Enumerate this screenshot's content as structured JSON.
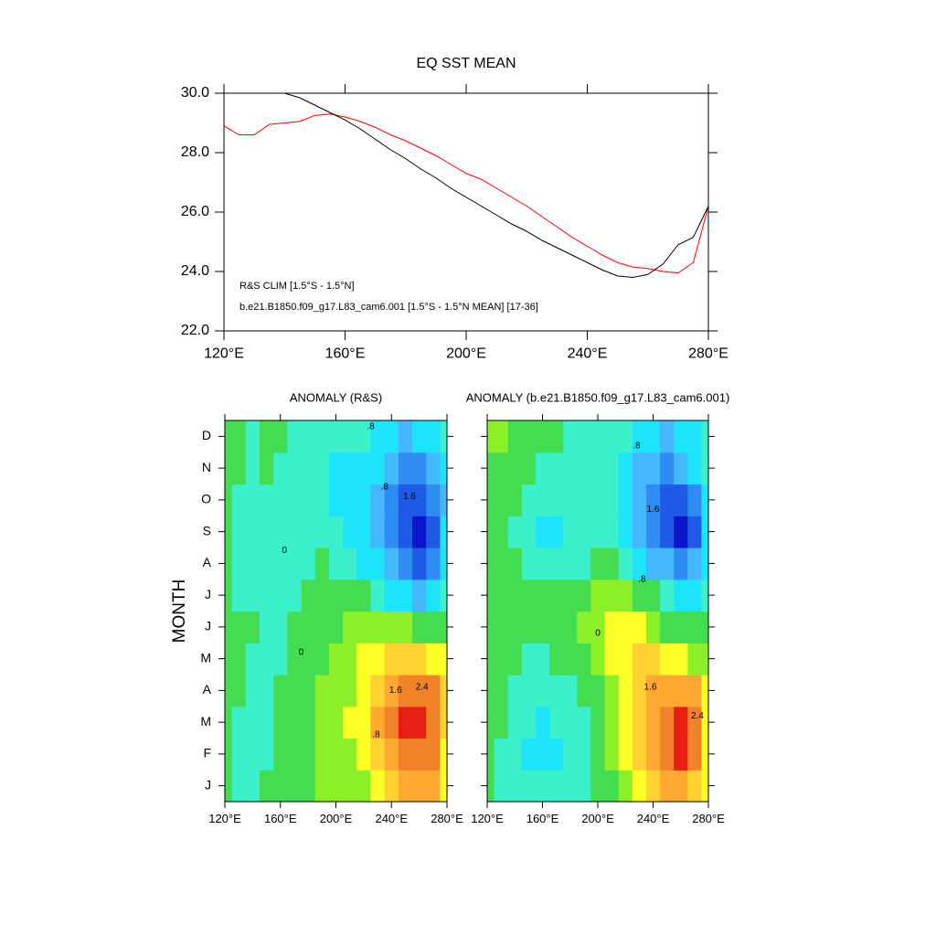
{
  "chart_data": [
    {
      "type": "line",
      "title": "EQ SST MEAN",
      "x": [
        120,
        125,
        130,
        135,
        140,
        145,
        150,
        155,
        160,
        165,
        170,
        175,
        180,
        185,
        190,
        195,
        200,
        205,
        210,
        215,
        220,
        225,
        230,
        235,
        240,
        245,
        250,
        255,
        260,
        265,
        270,
        275,
        280
      ],
      "series": [
        {
          "name": "R&S CLIM [1.5°S - 1.5°N]",
          "color": "#ff0000",
          "values": [
            28.9,
            28.6,
            28.6,
            28.95,
            29.0,
            29.05,
            29.25,
            29.3,
            29.2,
            29.05,
            28.85,
            28.6,
            28.4,
            28.15,
            27.9,
            27.6,
            27.3,
            27.1,
            26.8,
            26.5,
            26.2,
            25.85,
            25.5,
            25.15,
            24.85,
            24.55,
            24.3,
            24.15,
            24.1,
            24.0,
            23.95,
            24.3,
            26.2
          ]
        },
        {
          "name": "b.e21.B1850.f09_g17.L83_cam6.001 [1.5°S - 1.5°N MEAN] [17-36]",
          "color": "#000000",
          "values": [
            null,
            null,
            null,
            null,
            30.0,
            29.85,
            29.6,
            29.35,
            29.1,
            28.8,
            28.45,
            28.1,
            27.8,
            27.45,
            27.15,
            26.8,
            26.5,
            26.2,
            25.9,
            25.6,
            25.35,
            25.05,
            24.8,
            24.55,
            24.3,
            24.05,
            23.85,
            23.8,
            23.9,
            24.25,
            24.9,
            25.15,
            26.2
          ]
        }
      ],
      "xlim": [
        120,
        280
      ],
      "xticks": [
        {
          "value": 120,
          "label": "120°E"
        },
        {
          "value": 160,
          "label": "160°E"
        },
        {
          "value": 200,
          "label": "200°E"
        },
        {
          "value": 240,
          "label": "240°E"
        },
        {
          "value": 280,
          "label": "280°E"
        }
      ],
      "ylim": [
        22,
        30
      ],
      "yticks": [
        {
          "value": 22,
          "label": "22.0"
        },
        {
          "value": 24,
          "label": "24.0"
        },
        {
          "value": 26,
          "label": "26.0"
        },
        {
          "value": 28,
          "label": "28.0"
        },
        {
          "value": 30,
          "label": "30.0"
        }
      ]
    },
    {
      "type": "heatmap",
      "title": "ANOMALY (R&S)",
      "ylabel": "MONTH",
      "categories": [
        "J",
        "F",
        "M",
        "A",
        "M",
        "J",
        "J",
        "A",
        "S",
        "O",
        "N",
        "D"
      ],
      "x": [
        120,
        130,
        140,
        150,
        160,
        170,
        180,
        190,
        200,
        210,
        220,
        230,
        240,
        250,
        260,
        270,
        280
      ],
      "xlim": [
        120,
        280
      ],
      "xticks": [
        {
          "value": 120,
          "label": "120°E"
        },
        {
          "value": 160,
          "label": "160°E"
        },
        {
          "value": 200,
          "label": "200°E"
        },
        {
          "value": 240,
          "label": "240°E"
        },
        {
          "value": 280,
          "label": "280°E"
        }
      ],
      "ylim": [
        -0.5,
        11.5
      ],
      "yticks": [
        0,
        1,
        2,
        3,
        4,
        5,
        6,
        7,
        8,
        9,
        10,
        11
      ],
      "levels": [
        -2.0,
        -1.6,
        -1.2,
        -0.8,
        -0.4,
        0,
        0.4,
        0.8,
        1.2,
        1.6,
        2.0,
        2.4
      ],
      "colors": [
        "#0a14c8",
        "#1e5ae6",
        "#2e8cf2",
        "#44b8fa",
        "#1ee4fa",
        "#3cf0cc",
        "#44dc50",
        "#8cf028",
        "#ffff28",
        "#ffd232",
        "#ffa832",
        "#f08228",
        "#e61e14"
      ],
      "z": [
        [
          0.1,
          -0.2,
          -0.2,
          0,
          0.2,
          0.1,
          0.3,
          0.4,
          0.5,
          0.6,
          0.7,
          0.9,
          1.3,
          1.6,
          1.8,
          1.6,
          0.8
        ],
        [
          0.1,
          -0.1,
          -0.2,
          -0.1,
          0.1,
          0.2,
          0.3,
          0.4,
          0.5,
          0.7,
          0.9,
          1.3,
          1.8,
          2.2,
          2.3,
          2.0,
          1.0
        ],
        [
          0.2,
          -0.1,
          -0.2,
          -0.2,
          0,
          0.2,
          0.3,
          0.4,
          0.6,
          0.8,
          1.1,
          1.6,
          2.1,
          2.5,
          2.7,
          2.3,
          1.2
        ],
        [
          0.3,
          0,
          -0.1,
          -0.2,
          0,
          0.1,
          0.3,
          0.4,
          0.5,
          0.7,
          1.0,
          1.5,
          1.9,
          2.2,
          2.3,
          2.0,
          1.4
        ],
        [
          0.3,
          0.1,
          -0.1,
          -0.2,
          -0.1,
          0.1,
          0.2,
          0.3,
          0.4,
          0.6,
          0.8,
          1.1,
          1.3,
          1.4,
          1.3,
          1.0,
          0.9
        ],
        [
          0.2,
          0.1,
          0,
          -0.1,
          -0.1,
          0,
          0.1,
          0.2,
          0.3,
          0.4,
          0.5,
          0.6,
          0.6,
          0.4,
          0.2,
          0,
          0.2
        ],
        [
          0.1,
          -0.1,
          -0.2,
          -0.3,
          -0.2,
          -0.1,
          0,
          0.1,
          0.1,
          0.1,
          0,
          -0.2,
          -0.5,
          -0.8,
          -0.9,
          -0.8,
          -0.3
        ],
        [
          0,
          -0.2,
          -0.3,
          -0.3,
          -0.3,
          -0.2,
          -0.1,
          0,
          -0.1,
          -0.3,
          -0.5,
          -0.8,
          -1.2,
          -1.6,
          -1.8,
          -1.5,
          -0.6
        ],
        [
          0.1,
          -0.2,
          -0.3,
          -0.2,
          -0.2,
          -0.1,
          -0.1,
          -0.2,
          -0.3,
          -0.5,
          -0.7,
          -1.0,
          -1.5,
          -2.0,
          -2.2,
          -1.8,
          -0.8
        ],
        [
          0.2,
          -0.1,
          -0.2,
          -0.1,
          -0.1,
          -0.2,
          -0.3,
          -0.4,
          -0.5,
          -0.6,
          -0.8,
          -1.0,
          -1.4,
          -1.8,
          -1.9,
          -1.6,
          -0.9
        ],
        [
          0.2,
          0,
          -0.1,
          0,
          -0.1,
          -0.3,
          -0.4,
          -0.4,
          -0.5,
          -0.5,
          -0.6,
          -0.8,
          -1.1,
          -1.3,
          -1.3,
          -1.1,
          -0.6
        ],
        [
          0.2,
          0,
          -0.1,
          0,
          0,
          -0.2,
          -0.3,
          -0.3,
          -0.3,
          -0.3,
          -0.4,
          -0.6,
          -0.8,
          -0.9,
          -0.8,
          -0.6,
          -0.3
        ]
      ],
      "contour_labels": [
        {
          "label": ".8",
          "lon": 225,
          "month": 11.3
        },
        {
          "label": ".8",
          "lon": 235,
          "month": 9.4
        },
        {
          "label": "1.6",
          "lon": 253,
          "month": 9.1
        },
        {
          "label": "0",
          "lon": 163,
          "month": 7.4
        },
        {
          "label": "0",
          "lon": 175,
          "month": 4.2
        },
        {
          "label": "1.6",
          "lon": 243,
          "month": 3.0
        },
        {
          "label": "2.4",
          "lon": 262,
          "month": 3.1
        },
        {
          "label": ".8",
          "lon": 229,
          "month": 1.6
        }
      ]
    },
    {
      "type": "heatmap",
      "title": "ANOMALY (b.e21.B1850.f09_g17.L83_cam6.001)",
      "x": [
        120,
        130,
        140,
        150,
        160,
        170,
        180,
        190,
        200,
        210,
        220,
        230,
        240,
        250,
        260,
        270,
        280
      ],
      "xlim": [
        120,
        280
      ],
      "xticks": [
        {
          "value": 120,
          "label": "120°E"
        },
        {
          "value": 160,
          "label": "160°E"
        },
        {
          "value": 200,
          "label": "200°E"
        },
        {
          "value": 240,
          "label": "240°E"
        },
        {
          "value": 280,
          "label": "280°E"
        }
      ],
      "ylim": [
        -0.5,
        11.5
      ],
      "yticks": [
        0,
        1,
        2,
        3,
        4,
        5,
        6,
        7,
        8,
        9,
        10,
        11
      ],
      "levels": [
        -2.0,
        -1.6,
        -1.2,
        -0.8,
        -0.4,
        0,
        0.4,
        0.8,
        1.2,
        1.6,
        2.0,
        2.4
      ],
      "colors": [
        "#0a14c8",
        "#1e5ae6",
        "#2e8cf2",
        "#44b8fa",
        "#1ee4fa",
        "#3cf0cc",
        "#44dc50",
        "#8cf028",
        "#ffff28",
        "#ffd232",
        "#ffa832",
        "#f08228",
        "#e61e14"
      ],
      "z": [
        [
          0,
          -0.1,
          -0.2,
          -0.3,
          -0.4,
          -0.4,
          -0.3,
          -0.2,
          0,
          0.3,
          0.6,
          1.0,
          1.4,
          1.7,
          1.8,
          1.5,
          0.8
        ],
        [
          0.1,
          -0.1,
          -0.3,
          -0.5,
          -0.5,
          -0.5,
          -0.4,
          -0.2,
          0.1,
          0.4,
          0.8,
          1.3,
          1.8,
          2.2,
          2.4,
          2.0,
          1.0
        ],
        [
          0.1,
          0,
          -0.2,
          -0.4,
          -0.5,
          -0.4,
          -0.3,
          -0.1,
          0.2,
          0.5,
          0.9,
          1.4,
          1.9,
          2.3,
          2.5,
          2.2,
          1.1
        ],
        [
          0.2,
          0.1,
          -0.1,
          -0.2,
          -0.3,
          -0.2,
          -0.1,
          0.1,
          0.3,
          0.6,
          1.0,
          1.4,
          1.7,
          1.9,
          1.9,
          1.6,
          1.0
        ],
        [
          0.2,
          0.1,
          0,
          -0.1,
          -0.1,
          0,
          0.1,
          0.3,
          0.5,
          0.8,
          1.1,
          1.2,
          1.2,
          1.1,
          0.9,
          0.7,
          0.5
        ],
        [
          0.1,
          0.2,
          0.3,
          0.3,
          0.2,
          0.2,
          0.3,
          0.4,
          0.6,
          0.9,
          1.0,
          0.9,
          0.6,
          0.3,
          0.1,
          0,
          0.1
        ],
        [
          0,
          0.1,
          0.2,
          0.3,
          0.1,
          0,
          0.1,
          0.2,
          0.4,
          0.5,
          0.5,
          0.3,
          0,
          -0.3,
          -0.5,
          -0.5,
          -0.2
        ],
        [
          0,
          0,
          0,
          -0.1,
          -0.3,
          -0.3,
          -0.2,
          -0.1,
          0,
          0,
          -0.2,
          -0.5,
          -0.9,
          -1.2,
          -1.4,
          -1.2,
          -0.5
        ],
        [
          0.1,
          0,
          -0.1,
          -0.3,
          -0.5,
          -0.5,
          -0.4,
          -0.2,
          -0.2,
          -0.3,
          -0.6,
          -1.0,
          -1.5,
          -1.9,
          -2.1,
          -1.7,
          -0.7
        ],
        [
          0.2,
          0.1,
          0,
          -0.2,
          -0.4,
          -0.4,
          -0.3,
          -0.2,
          -0.2,
          -0.4,
          -0.7,
          -1.1,
          -1.6,
          -1.8,
          -1.7,
          -1.3,
          -0.6
        ],
        [
          0.3,
          0.3,
          0.2,
          0,
          -0.1,
          -0.2,
          -0.2,
          -0.2,
          -0.3,
          -0.4,
          -0.6,
          -0.9,
          -1.2,
          -1.3,
          -1.1,
          -0.8,
          -0.4
        ],
        [
          0.4,
          0.4,
          0.3,
          0.2,
          0.1,
          0,
          -0.1,
          -0.2,
          -0.2,
          -0.3,
          -0.4,
          -0.6,
          -0.8,
          -0.9,
          -0.7,
          -0.5,
          -0.2
        ]
      ],
      "contour_labels": [
        {
          "label": ".8",
          "lon": 228,
          "month": 10.7
        },
        {
          "label": "1.6",
          "lon": 240,
          "month": 8.7
        },
        {
          "label": ".8",
          "lon": 232,
          "month": 6.5
        },
        {
          "label": "1.6",
          "lon": 238,
          "month": 3.1
        },
        {
          "label": "2.4",
          "lon": 272,
          "month": 2.2
        },
        {
          "label": "0",
          "lon": 200,
          "month": 4.8
        }
      ]
    }
  ]
}
